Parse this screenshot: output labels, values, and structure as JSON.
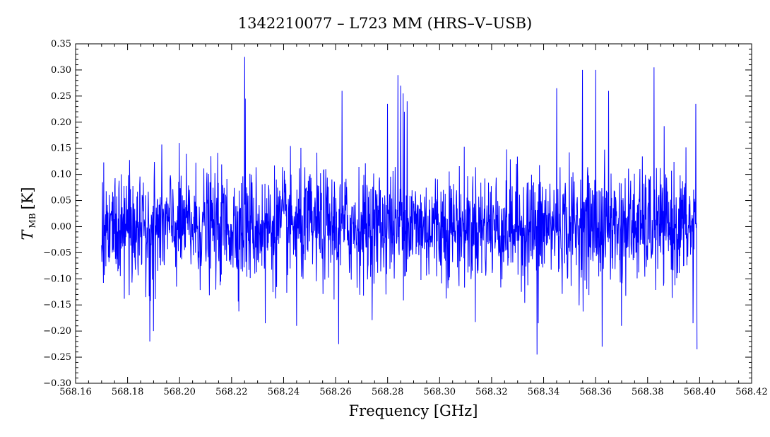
{
  "chart_data": {
    "type": "line",
    "title": "1342210077 – L723 MM (HRS–V–USB)",
    "xlabel": "Frequency [GHz]",
    "ylabel": {
      "main": "T",
      "sub": "MB",
      "unit": "[K]"
    },
    "xlim": [
      568.16,
      568.42
    ],
    "ylim": [
      -0.3,
      0.35
    ],
    "xticks": [
      568.16,
      568.18,
      568.2,
      568.22,
      568.24,
      568.26,
      568.28,
      568.3,
      568.32,
      568.34,
      568.36,
      568.38,
      568.4,
      568.42
    ],
    "xtick_labels": [
      "568.16",
      "568.18",
      "568.20",
      "568.22",
      "568.24",
      "568.26",
      "568.28",
      "568.30",
      "568.32",
      "568.34",
      "568.36",
      "568.38",
      "568.40",
      "568.42"
    ],
    "yticks": [
      -0.3,
      -0.25,
      -0.2,
      -0.15,
      -0.1,
      -0.05,
      0.0,
      0.05,
      0.1,
      0.15,
      0.2,
      0.25,
      0.3,
      0.35
    ],
    "ytick_labels": [
      "−0.30",
      "−0.25",
      "−0.20",
      "−0.15",
      "−0.10",
      "−0.05",
      "0.00",
      "0.05",
      "0.10",
      "0.15",
      "0.20",
      "0.25",
      "0.30",
      "0.35"
    ],
    "grid": false,
    "series": [
      {
        "color": "#0000ff",
        "x_range": [
          568.17,
          568.399
        ],
        "noise_sigma": 0.075,
        "features": [
          {
            "x": 568.225,
            "y": 0.325
          },
          {
            "x": 568.2253,
            "y": 0.245
          },
          {
            "x": 568.1885,
            "y": -0.22
          },
          {
            "x": 568.19,
            "y": -0.2
          },
          {
            "x": 568.284,
            "y": 0.29
          },
          {
            "x": 568.285,
            "y": 0.27
          },
          {
            "x": 568.286,
            "y": 0.255
          },
          {
            "x": 568.2865,
            "y": 0.22
          },
          {
            "x": 568.2875,
            "y": 0.24
          },
          {
            "x": 568.28,
            "y": 0.235
          },
          {
            "x": 568.2612,
            "y": -0.225
          },
          {
            "x": 568.2625,
            "y": 0.26
          },
          {
            "x": 568.3375,
            "y": -0.245
          },
          {
            "x": 568.338,
            "y": -0.185
          },
          {
            "x": 568.355,
            "y": 0.3
          },
          {
            "x": 568.36,
            "y": 0.3
          },
          {
            "x": 568.3625,
            "y": -0.23
          },
          {
            "x": 568.3825,
            "y": 0.305
          },
          {
            "x": 568.3985,
            "y": 0.235
          },
          {
            "x": 568.399,
            "y": -0.235
          },
          {
            "x": 568.3975,
            "y": -0.185
          },
          {
            "x": 568.233,
            "y": -0.185
          },
          {
            "x": 568.245,
            "y": -0.19
          },
          {
            "x": 568.345,
            "y": 0.265
          },
          {
            "x": 568.365,
            "y": 0.26
          },
          {
            "x": 568.37,
            "y": -0.19
          }
        ]
      }
    ]
  }
}
